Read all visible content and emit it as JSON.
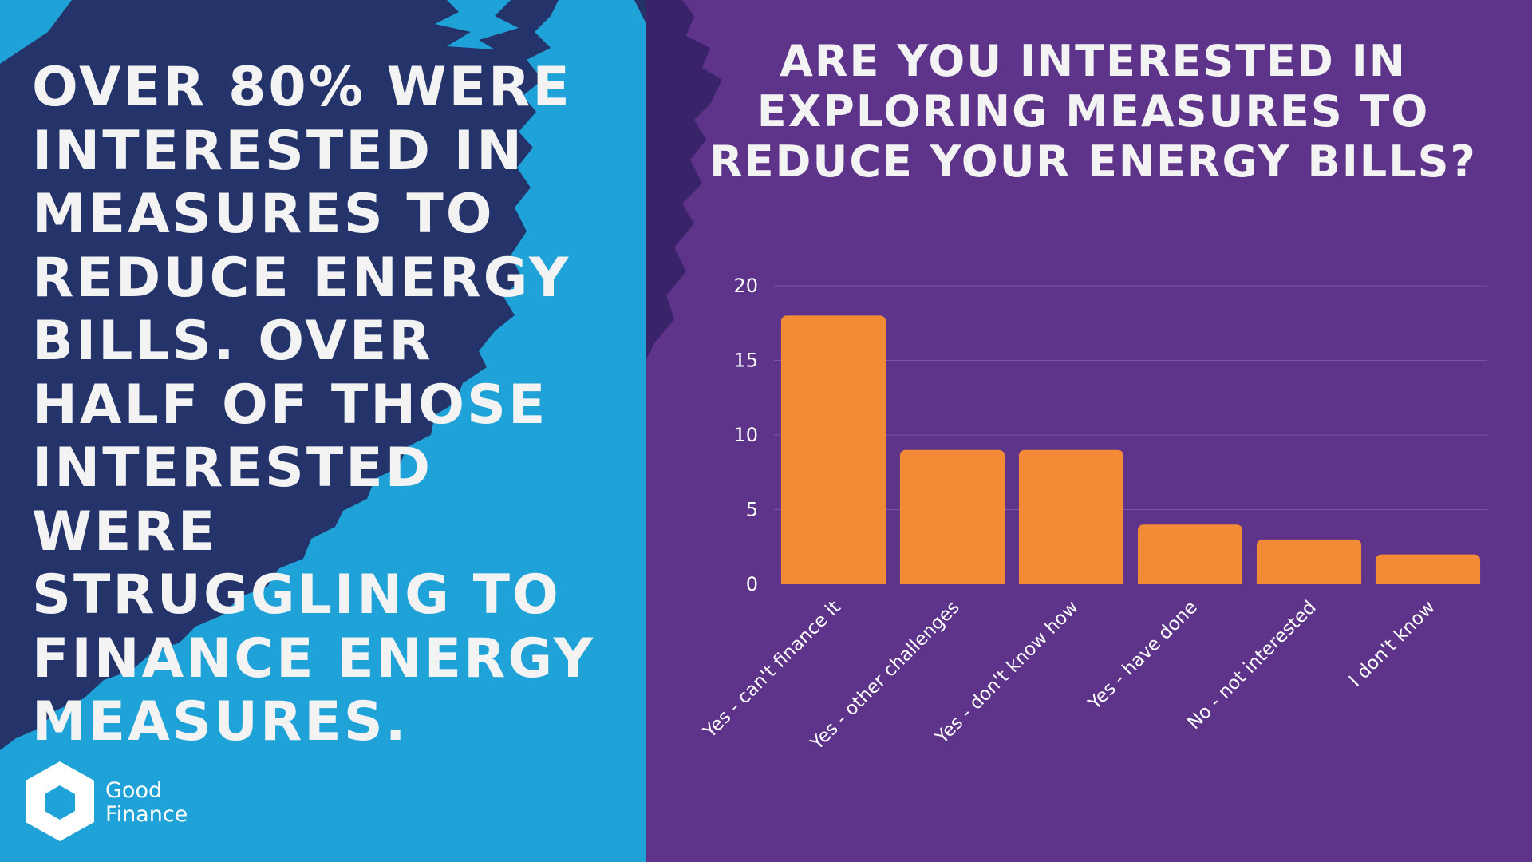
{
  "headline": "Over 80% were interested in measures to reduce energy bills. Over half of those interested were struggling to finance energy measures.",
  "logo": {
    "line1": "Good",
    "line2": "Finance"
  },
  "colors": {
    "left_navy": "#25336b",
    "left_blue": "#1ea2d8",
    "right_purple": "#5e348a",
    "bar": "#f38a35",
    "text": "#f3f3f3"
  },
  "chart_data": {
    "type": "bar",
    "title": "Are you interested in exploring measures to reduce your energy bills?",
    "categories": [
      "Yes - can't finance it",
      "Yes - other challenges",
      "Yes - don't know how",
      "Yes - have done",
      "No - not interested",
      "I don't know"
    ],
    "values": [
      18,
      9,
      9,
      4,
      3,
      2
    ],
    "ylim": [
      0,
      20
    ],
    "yticks": [
      0,
      5,
      10,
      15,
      20
    ],
    "grid": true,
    "legend": "none"
  }
}
